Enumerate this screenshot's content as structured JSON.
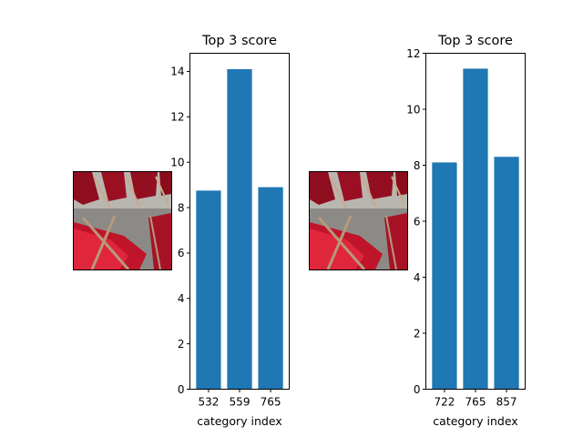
{
  "panels": [
    {
      "image_icon": "red-deck-chairs-photo"
    },
    {
      "image_icon": "red-deck-chairs-photo"
    }
  ],
  "chart_data": [
    {
      "type": "bar",
      "title": "Top 3 score",
      "xlabel": "category index",
      "ylabel": "",
      "categories": [
        "532",
        "559",
        "765"
      ],
      "values": [
        8.75,
        14.1,
        8.9
      ],
      "ylim": [
        0,
        14.8
      ],
      "yticks": [
        0,
        2,
        4,
        6,
        8,
        10,
        12,
        14
      ],
      "bar_color": "#1f77b4",
      "grid": false
    },
    {
      "type": "bar",
      "title": "Top 3 score",
      "xlabel": "category index",
      "ylabel": "",
      "categories": [
        "722",
        "765",
        "857"
      ],
      "values": [
        8.1,
        11.45,
        8.3
      ],
      "ylim": [
        0,
        12
      ],
      "yticks": [
        0,
        2,
        4,
        6,
        8,
        10,
        12
      ],
      "bar_color": "#1f77b4",
      "grid": false
    }
  ]
}
